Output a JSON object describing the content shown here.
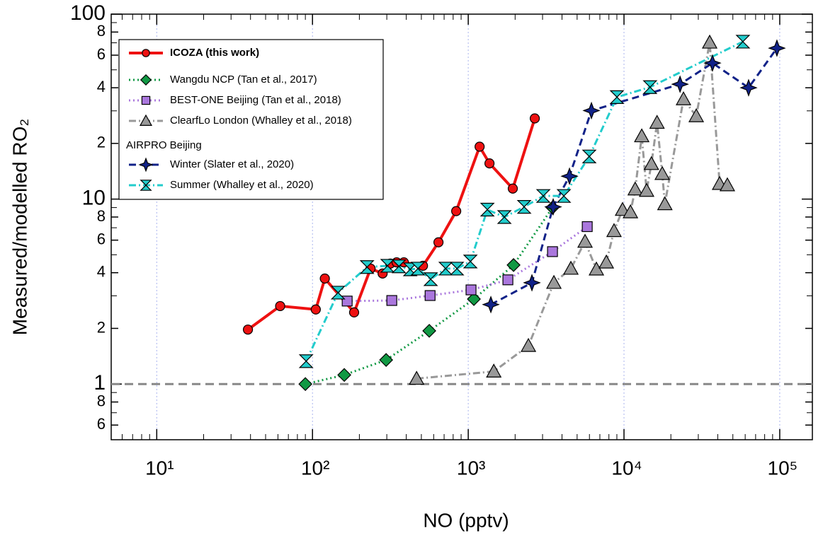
{
  "chart_data": {
    "type": "scatter-line",
    "xlabel": "NO (pptv)",
    "ylabel": "Measured/modelled RO₂",
    "xscale": "log",
    "yscale": "log",
    "xlim": [
      5.1,
      162000
    ],
    "ylim": [
      0.5,
      100
    ],
    "xticks": [
      {
        "value": 10,
        "label": "10¹"
      },
      {
        "value": 100,
        "label": "10²"
      },
      {
        "value": 1000,
        "label": "10³"
      },
      {
        "value": 10000,
        "label": "10⁴"
      },
      {
        "value": 100000,
        "label": "10⁵"
      }
    ],
    "yticks": [
      {
        "value": 0.6,
        "label": "6"
      },
      {
        "value": 0.8,
        "label": "8"
      },
      1,
      {
        "value": 2,
        "label": "2"
      },
      {
        "value": 4,
        "label": "4"
      },
      {
        "value": 6,
        "label": "6"
      },
      {
        "value": 8,
        "label": "8"
      },
      10,
      {
        "value": 20,
        "label": "2"
      },
      {
        "value": 40,
        "label": "4"
      },
      {
        "value": 60,
        "label": "6"
      },
      {
        "value": 80,
        "label": "8"
      },
      100
    ],
    "xgrid": true,
    "hline": 1,
    "legend_position": "upper left",
    "legend_group_title": "AIRPRO Beijing",
    "legend_group_start": 4,
    "series": [
      {
        "name": "ICOZA (this work)",
        "color": "#ee1111",
        "marker": "circle",
        "dash": "solid",
        "bold": true,
        "x": [
          38.5,
          62,
          105,
          120,
          185,
          236,
          282,
          316,
          347,
          386,
          512,
          644,
          837,
          1183,
          1369,
          1932,
          2674
        ],
        "values": [
          1.97,
          2.64,
          2.53,
          3.72,
          2.44,
          4.21,
          3.96,
          4.48,
          4.55,
          4.55,
          4.36,
          5.84,
          8.61,
          19.2,
          15.6,
          11.4,
          27.3
        ]
      },
      {
        "name": "Wangdu NCP (Tan et al., 2017)",
        "color": "#119944",
        "marker": "diamond",
        "dash": "dotted",
        "x": [
          90,
          160,
          297,
          562,
          1087,
          1954,
          3475
        ],
        "values": [
          1.0,
          1.12,
          1.35,
          1.94,
          2.88,
          4.4,
          9.0
        ]
      },
      {
        "name": "BEST-ONE Beijing (Tan et al., 2018)",
        "color": "#aa77dd",
        "marker": "square",
        "dash": "dotted",
        "x": [
          167,
          323,
          569,
          1042,
          1797,
          3475,
          5808
        ],
        "values": [
          2.81,
          2.83,
          3.01,
          3.23,
          3.66,
          5.2,
          7.1
        ]
      },
      {
        "name": "ClearfLo London (Whalley et al., 2018)",
        "color": "#999999",
        "marker": "triangle",
        "dash": "dashdot",
        "x": [
          466,
          1459,
          2434,
          3548,
          4561,
          5623,
          6650,
          7700,
          8630,
          9790,
          11000,
          11800,
          13000,
          13970,
          15000,
          16300,
          17600,
          18300,
          24100,
          29100,
          35500,
          41100,
          46100
        ],
        "values": [
          1.07,
          1.17,
          1.61,
          3.53,
          4.21,
          5.89,
          4.17,
          4.55,
          6.73,
          8.76,
          8.5,
          11.3,
          21.9,
          11.1,
          15.5,
          25.9,
          13.7,
          9.4,
          34.7,
          28.1,
          70.3,
          12.1,
          11.9
        ]
      },
      {
        "name": "Winter (Slater et al., 2020)",
        "color": "#112288",
        "marker": "star",
        "dash": "dashed",
        "x": [
          1397,
          2564,
          3510,
          4467,
          6180,
          22900,
          37000,
          63100,
          95900
        ],
        "values": [
          2.69,
          3.53,
          9.08,
          13.3,
          30.1,
          41.8,
          54.4,
          40,
          65.5
        ]
      },
      {
        "name": "Summer (Whalley et al., 2020)",
        "color": "#22cccc",
        "marker": "hourglass",
        "dash": "dashdot",
        "x": [
          91,
          146,
          224,
          303,
          359,
          424,
          475,
          574,
          716,
          846,
          1032,
          1327,
          1706,
          2286,
          3034,
          4111,
          5984,
          9010,
          14700,
          58000
        ],
        "values": [
          1.33,
          3.12,
          4.29,
          4.36,
          4.33,
          4.17,
          4.21,
          3.69,
          4.21,
          4.21,
          4.6,
          8.77,
          8.0,
          9.08,
          10.4,
          10.4,
          17,
          35.6,
          40.3,
          71
        ]
      }
    ]
  }
}
